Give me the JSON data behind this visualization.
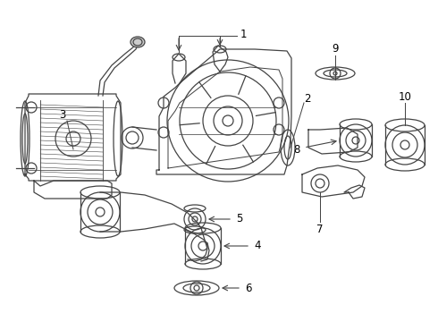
{
  "bg_color": "#ffffff",
  "line_color": "#444444",
  "label_color": "#000000",
  "fig_width": 4.9,
  "fig_height": 3.6,
  "dpi": 100
}
